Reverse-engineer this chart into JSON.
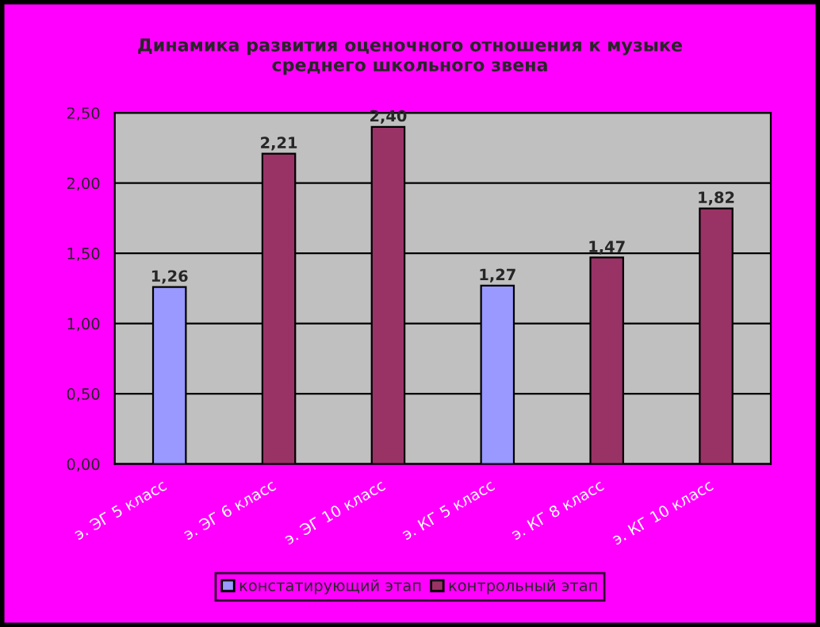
{
  "chart_data": {
    "type": "bar",
    "title": "Динамика развития оценочного отношения к музыке\nсреднего школьного звена",
    "categories": [
      "э. ЭГ 5 класс",
      "э. ЭГ 6 класс",
      "э. ЭГ 10 класс",
      "э. КГ 5 класс",
      "э. КГ 8 класс",
      "э. КГ 10 класс"
    ],
    "series": [
      {
        "name": "констатирующий этап",
        "color": "#9999ff",
        "values": [
          1.26,
          null,
          null,
          1.27,
          null,
          null
        ],
        "value_labels": [
          "1,26",
          null,
          null,
          "1,27",
          null,
          null
        ]
      },
      {
        "name": "контрольный этап",
        "color": "#993366",
        "values": [
          null,
          2.21,
          2.4,
          null,
          1.47,
          1.82
        ],
        "value_labels": [
          null,
          "2,21",
          "2,40",
          null,
          "1,47",
          "1,82"
        ]
      }
    ],
    "ylim": [
      0,
      2.5
    ],
    "yticks": [
      {
        "value": 0,
        "label": "0,00"
      },
      {
        "value": 0.5,
        "label": "0,50"
      },
      {
        "value": 1.0,
        "label": "1,00"
      },
      {
        "value": 1.5,
        "label": "1,50"
      },
      {
        "value": 2.0,
        "label": "2,00"
      },
      {
        "value": 2.5,
        "label": "2,50"
      }
    ],
    "grid": "y",
    "legend": "bottom"
  }
}
